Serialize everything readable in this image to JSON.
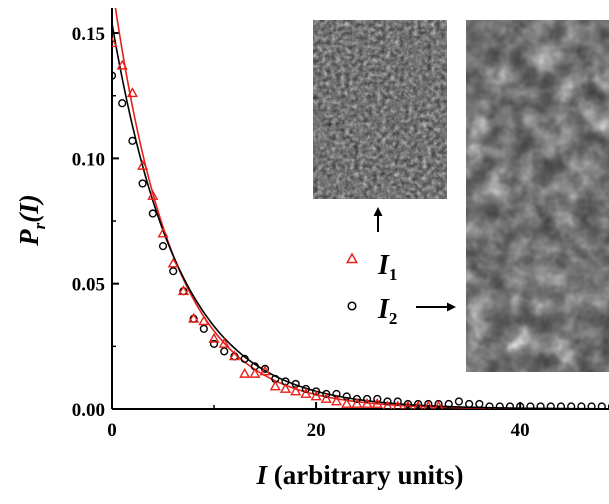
{
  "chart_data": {
    "type": "scatter",
    "xlabel": {
      "symbol": "I",
      "rest": " (arbitrary units)"
    },
    "ylabel": {
      "symbol": "P",
      "sub": "r",
      "arg": "(I)"
    },
    "xlim": [
      0,
      49
    ],
    "ylim": [
      0,
      0.16
    ],
    "x_ticks": [
      {
        "value": 0,
        "label": "0"
      },
      {
        "value": 20,
        "label": "20"
      },
      {
        "value": 40,
        "label": "40"
      }
    ],
    "y_ticks": [
      {
        "value": 0,
        "label": "0.00"
      },
      {
        "value": 0.05,
        "label": "0.05"
      },
      {
        "value": 0.1,
        "label": "0.10"
      },
      {
        "value": 0.15,
        "label": "0.15"
      }
    ],
    "grid": false,
    "legend_position": "center-right",
    "series": [
      {
        "name": "I1",
        "label_symbol": "I",
        "label_sub": "1",
        "marker": "triangle",
        "color": "#e8201a",
        "fit_mean": 5.9,
        "x": [
          0,
          1,
          2,
          3,
          4,
          5,
          6,
          7,
          8,
          9,
          10,
          11,
          12,
          13,
          14,
          15,
          16,
          17,
          18,
          19,
          20,
          21,
          22,
          23,
          24,
          25,
          26,
          27,
          28,
          29,
          30,
          31,
          32
        ],
        "y": [
          0.146,
          0.137,
          0.126,
          0.097,
          0.085,
          0.07,
          0.058,
          0.047,
          0.036,
          0.035,
          0.028,
          0.026,
          0.021,
          0.014,
          0.014,
          0.015,
          0.009,
          0.008,
          0.007,
          0.006,
          0.005,
          0.004,
          0.003,
          0.002,
          0.002,
          0.002,
          0.002,
          0.001,
          0.001,
          0.001,
          0.001,
          0.001,
          0.001
        ]
      },
      {
        "name": "I2",
        "label_symbol": "I",
        "label_sub": "2",
        "marker": "circle",
        "color": "#000000",
        "fit_mean": 6.5,
        "x": [
          0,
          1,
          2,
          3,
          4,
          5,
          6,
          7,
          8,
          9,
          10,
          11,
          12,
          13,
          14,
          15,
          16,
          17,
          18,
          19,
          20,
          21,
          22,
          23,
          24,
          25,
          26,
          27,
          28,
          29,
          30,
          31,
          32,
          33,
          34,
          35,
          36,
          37,
          38,
          39,
          40,
          41,
          42,
          43,
          44,
          45,
          46,
          47,
          48,
          49
        ],
        "y": [
          0.133,
          0.122,
          0.107,
          0.09,
          0.078,
          0.065,
          0.055,
          0.047,
          0.036,
          0.032,
          0.026,
          0.023,
          0.021,
          0.02,
          0.017,
          0.016,
          0.012,
          0.011,
          0.01,
          0.008,
          0.007,
          0.006,
          0.006,
          0.005,
          0.004,
          0.004,
          0.004,
          0.003,
          0.003,
          0.002,
          0.002,
          0.002,
          0.002,
          0.002,
          0.003,
          0.002,
          0.002,
          0.001,
          0.001,
          0.001,
          0.001,
          0.001,
          0.001,
          0.001,
          0.001,
          0.001,
          0.001,
          0.001,
          0.001,
          0.001
        ]
      }
    ]
  }
}
